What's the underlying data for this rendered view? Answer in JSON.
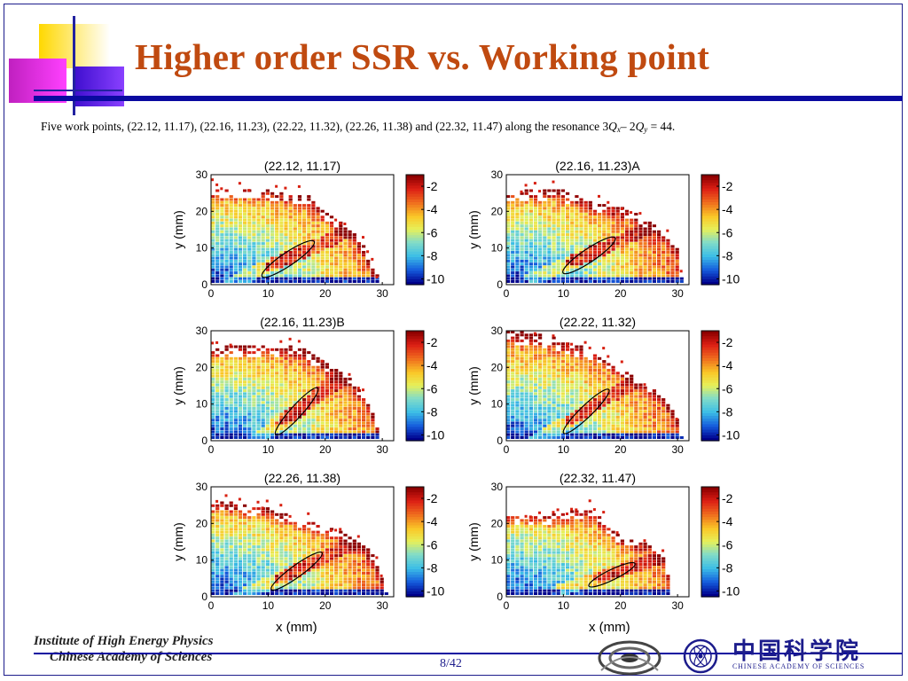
{
  "slide": {
    "title": "Higher order SSR vs. Working point",
    "subtitle_prefix": "Five work points, (22.12, 11.17), (22.16, 11.23), (22.22, 11.32), (22.26, 11.38) and (22.32, 11.47) along the resonance 3",
    "subtitle_q": "Q",
    "subtitle_x": "x",
    "subtitle_mid": "– 2",
    "subtitle_y": "y",
    "subtitle_suffix": " = 44."
  },
  "figure": {
    "xlabel": "x (mm)",
    "ylabel": "y (mm)"
  },
  "footer": {
    "institute_line1": "Institute of High Energy Physics",
    "institute_line2": "Chinese Academy of Sciences",
    "page": "8/42",
    "cas_english": "CHINESE ACADEMY OF SCIENCES",
    "cas_chinese": "中国科学院"
  },
  "colors": {
    "title": "#c04a10",
    "rule": "#0a0aa0",
    "colormap_high": "#8b0000",
    "colormap_low": "#00008b"
  },
  "chart_data": [
    {
      "type": "heatmap",
      "title": "(22.12, 11.17)",
      "ylabel": "y (mm)",
      "xlim": [
        0,
        32
      ],
      "ylim": [
        0,
        30
      ],
      "xticks": [
        0,
        10,
        20,
        30
      ],
      "yticks": [
        0,
        10,
        20,
        30
      ],
      "colorbar_ticks": [
        -2,
        -4,
        -6,
        -8,
        -10
      ],
      "boundary": [
        [
          0,
          26
        ],
        [
          10,
          26
        ],
        [
          17,
          24
        ],
        [
          20,
          20
        ],
        [
          25,
          14
        ],
        [
          27,
          10
        ],
        [
          28,
          6
        ],
        [
          30,
          0
        ]
      ],
      "ellipse": {
        "cx": 13.5,
        "cy": 7,
        "rx": 5.5,
        "ry": 1.8,
        "angle": 34
      }
    },
    {
      "type": "heatmap",
      "title": "(22.16, 11.23)A",
      "ylabel": "y (mm)",
      "xlim": [
        0,
        32
      ],
      "ylim": [
        0,
        30
      ],
      "xticks": [
        0,
        10,
        20,
        30
      ],
      "yticks": [
        0,
        10,
        20,
        30
      ],
      "colorbar_ticks": [
        -2,
        -4,
        -6,
        -8,
        -10
      ],
      "boundary": [
        [
          0,
          25
        ],
        [
          9,
          26
        ],
        [
          15,
          22
        ],
        [
          22,
          20
        ],
        [
          28,
          14
        ],
        [
          30,
          10
        ],
        [
          31,
          0
        ]
      ],
      "ellipse": {
        "cx": 14.5,
        "cy": 8,
        "rx": 5.5,
        "ry": 1.8,
        "angle": 34
      }
    },
    {
      "type": "heatmap",
      "title": "(22.16, 11.23)B",
      "ylabel": "y (mm)",
      "xlim": [
        0,
        32
      ],
      "ylim": [
        0,
        30
      ],
      "xticks": [
        0,
        10,
        20,
        30
      ],
      "yticks": [
        0,
        10,
        20,
        30
      ],
      "colorbar_ticks": [
        -2,
        -4,
        -6,
        -8,
        -10
      ],
      "boundary": [
        [
          0,
          25
        ],
        [
          10,
          26
        ],
        [
          16,
          25
        ],
        [
          21,
          20
        ],
        [
          25,
          16
        ],
        [
          28,
          10
        ],
        [
          30,
          0
        ]
      ],
      "ellipse": {
        "cx": 15,
        "cy": 8,
        "rx": 5.5,
        "ry": 1.6,
        "angle": 48
      }
    },
    {
      "type": "heatmap",
      "title": "(22.22, 11.32)",
      "ylabel": "y (mm)",
      "xlim": [
        0,
        32
      ],
      "ylim": [
        0,
        30
      ],
      "xticks": [
        0,
        10,
        20,
        30
      ],
      "yticks": [
        0,
        10,
        20,
        30
      ],
      "colorbar_ticks": [
        -2,
        -4,
        -6,
        -8,
        -10
      ],
      "boundary": [
        [
          0,
          30
        ],
        [
          8,
          28
        ],
        [
          16,
          24
        ],
        [
          22,
          18
        ],
        [
          28,
          12
        ],
        [
          30,
          6
        ],
        [
          31,
          0
        ]
      ],
      "ellipse": {
        "cx": 14,
        "cy": 8,
        "rx": 5.5,
        "ry": 1.6,
        "angle": 44
      }
    },
    {
      "type": "heatmap",
      "title": "(22.26, 11.38)",
      "ylabel": "y (mm)",
      "xlim": [
        0,
        32
      ],
      "ylim": [
        0,
        30
      ],
      "xticks": [
        0,
        10,
        20,
        30
      ],
      "yticks": [
        0,
        10,
        20,
        30
      ],
      "colorbar_ticks": [
        -2,
        -4,
        -6,
        -8,
        -10
      ],
      "boundary": [
        [
          0,
          26
        ],
        [
          10,
          24
        ],
        [
          16,
          21
        ],
        [
          22,
          18
        ],
        [
          27,
          14
        ],
        [
          29,
          10
        ],
        [
          31,
          0
        ]
      ],
      "ellipse": {
        "cx": 15,
        "cy": 7,
        "rx": 5.5,
        "ry": 1.6,
        "angle": 36
      }
    },
    {
      "type": "heatmap",
      "title": "(22.32, 11.47)",
      "ylabel": "y (mm)",
      "xlim": [
        0,
        32
      ],
      "ylim": [
        0,
        30
      ],
      "xticks": [
        0,
        10,
        20,
        30
      ],
      "yticks": [
        0,
        10,
        20,
        30
      ],
      "colorbar_ticks": [
        -2,
        -4,
        -6,
        -8,
        -10
      ],
      "boundary": [
        [
          0,
          22
        ],
        [
          8,
          22
        ],
        [
          15,
          24
        ],
        [
          20,
          16
        ],
        [
          26,
          14
        ],
        [
          28,
          10
        ],
        [
          29,
          0
        ]
      ],
      "ellipse": {
        "cx": 18.5,
        "cy": 6,
        "rx": 4.5,
        "ry": 1.4,
        "angle": 26
      }
    }
  ]
}
